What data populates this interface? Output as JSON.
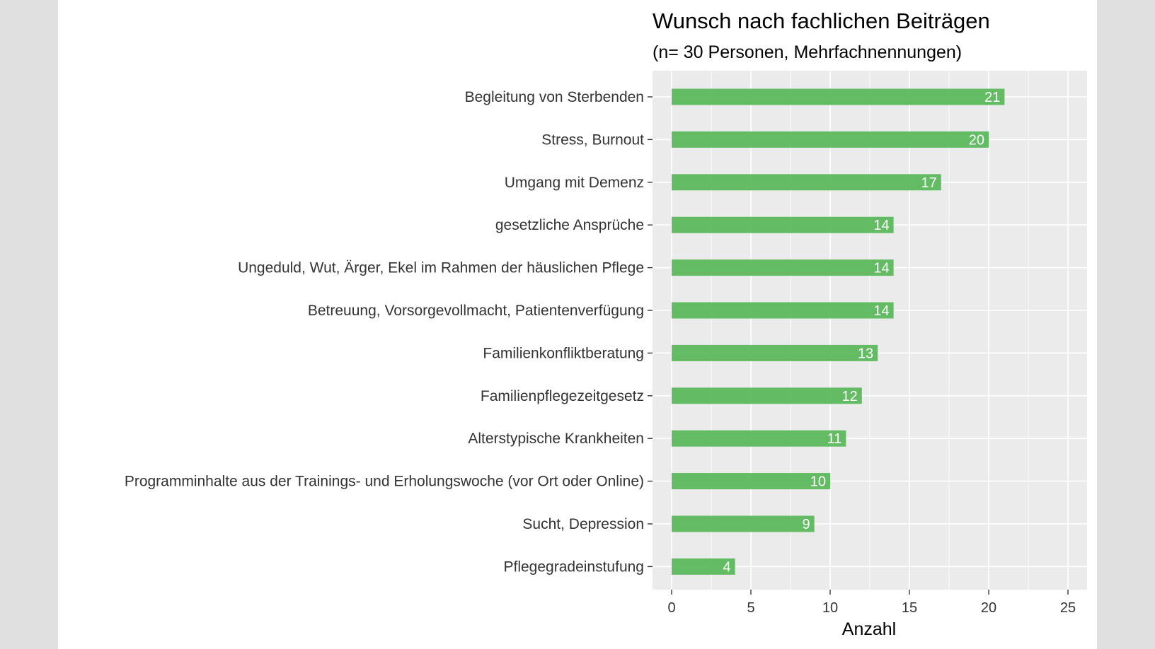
{
  "chart_data": {
    "type": "bar",
    "orientation": "horizontal",
    "title": "Wunsch nach fachlichen Beiträgen",
    "subtitle": "(n= 30 Personen, Mehrfachnennungen)",
    "xlabel": "Anzahl",
    "ylabel": "",
    "xlim": [
      0,
      26
    ],
    "x_ticks": [
      0,
      5,
      10,
      15,
      20,
      25
    ],
    "grid": true,
    "bar_color": "#5cb85c",
    "panel_color": "#ebebeb",
    "categories": [
      "Begleitung von Sterbenden",
      "Stress, Burnout",
      "Umgang mit Demenz",
      "gesetzliche Ansprüche",
      "Ungeduld, Wut, Ärger, Ekel im Rahmen der häuslichen Pflege",
      "Betreuung, Vorsorgevollmacht, Patientenverfügung",
      "Familienkonfliktberatung",
      "Familienpflegezeitgesetz",
      "Alterstypische Krankheiten",
      "Programminhalte aus der Trainings- und Erholungswoche (vor Ort oder Online)",
      "Sucht, Depression",
      "Pflegegradeinstufung"
    ],
    "values": [
      21,
      20,
      17,
      14,
      14,
      14,
      13,
      12,
      11,
      10,
      9,
      4
    ]
  }
}
